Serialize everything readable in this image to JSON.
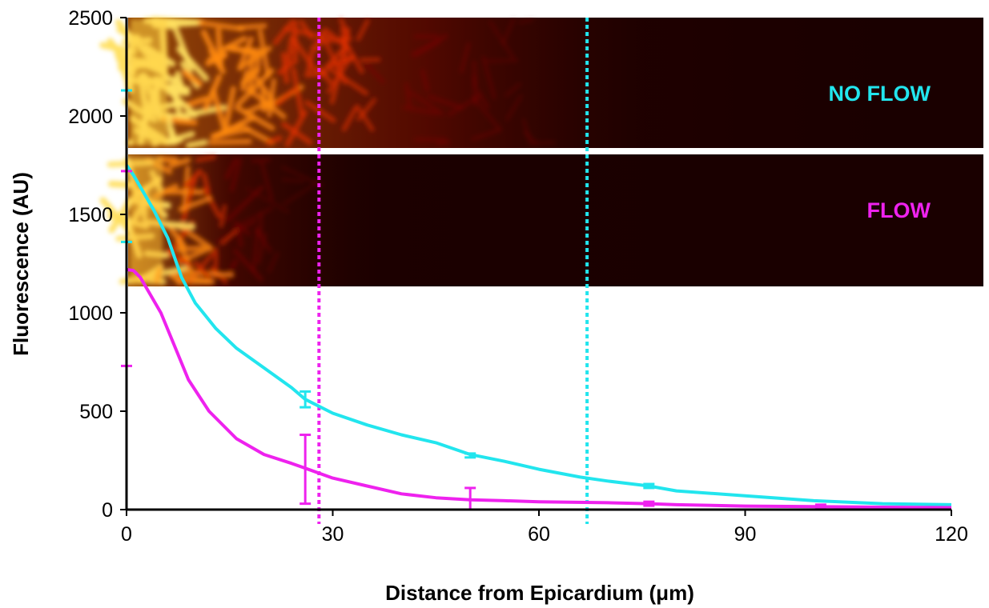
{
  "chart_data": {
    "type": "line",
    "xlabel": "Distance from Epicardium (μm)",
    "ylabel": "Fluorescence (AU)",
    "xlim": [
      0,
      120
    ],
    "ylim": [
      0,
      2500
    ],
    "xticks": [
      0,
      30,
      60,
      90,
      120
    ],
    "yticks": [
      0,
      500,
      1000,
      1500,
      2000,
      2500
    ],
    "grid": false,
    "inset_labels": [
      "NO FLOW",
      "FLOW"
    ],
    "colors": {
      "no_flow": "#22E5EE",
      "flow": "#EE22EE"
    },
    "series": [
      {
        "name": "NO FLOW",
        "color": "#22E5EE",
        "x": [
          0,
          1,
          2,
          4,
          6,
          8,
          10,
          13,
          16,
          20,
          24,
          26,
          30,
          35,
          40,
          45,
          50,
          55,
          60,
          66,
          70,
          76,
          80,
          90,
          100,
          110,
          120
        ],
        "y": [
          1750,
          1700,
          1640,
          1520,
          1380,
          1180,
          1050,
          920,
          820,
          720,
          620,
          560,
          490,
          430,
          380,
          340,
          280,
          245,
          205,
          165,
          145,
          120,
          95,
          70,
          45,
          30,
          25
        ],
        "error_bars": [
          {
            "x": 0,
            "low": 1360,
            "high": 2130
          },
          {
            "x": 26,
            "low": 520,
            "high": 600
          },
          {
            "x": 50,
            "low": 265,
            "high": 285
          },
          {
            "x": 76,
            "low": 110,
            "high": 130
          }
        ],
        "threshold_x": 67
      },
      {
        "name": "FLOW",
        "color": "#EE22EE",
        "x": [
          0,
          1,
          2,
          3,
          5,
          7,
          9,
          12,
          16,
          20,
          24,
          26,
          30,
          35,
          40,
          45,
          50,
          55,
          60,
          70,
          76,
          80,
          90,
          100,
          110,
          120
        ],
        "y": [
          1220,
          1215,
          1180,
          1120,
          1000,
          830,
          660,
          500,
          360,
          280,
          235,
          210,
          160,
          120,
          80,
          60,
          50,
          45,
          40,
          35,
          30,
          25,
          18,
          15,
          12,
          10
        ],
        "error_bars": [
          {
            "x": 0,
            "low": 730,
            "high": 1720
          },
          {
            "x": 26,
            "low": 30,
            "high": 380
          },
          {
            "x": 50,
            "low": 0,
            "high": 110
          },
          {
            "x": 76,
            "low": 20,
            "high": 40
          },
          {
            "x": 101,
            "low": 10,
            "high": 25
          }
        ],
        "threshold_x": 28
      }
    ]
  }
}
